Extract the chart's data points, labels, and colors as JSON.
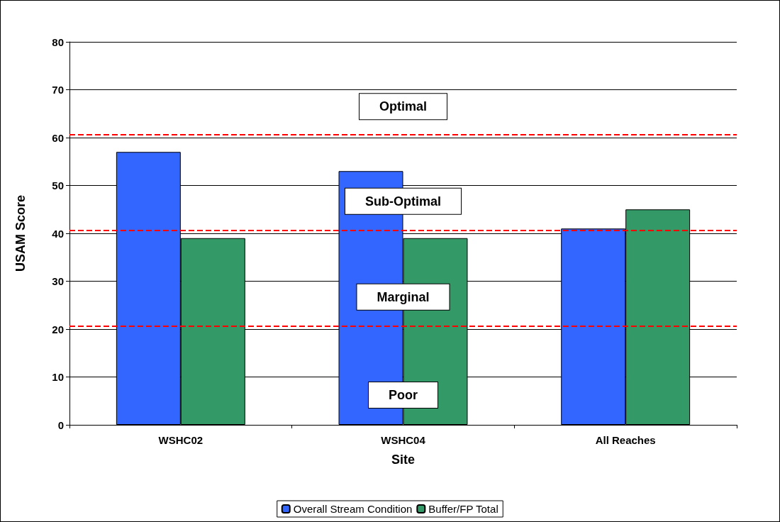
{
  "chart_data": {
    "type": "bar",
    "xlabel": "Site",
    "ylabel": "USAM Score",
    "categories": [
      "WSHC02",
      "WSHC04",
      "All Reaches"
    ],
    "series": [
      {
        "name": "Overall Stream Condition",
        "color": "#3366ff",
        "values": [
          57,
          53,
          41
        ]
      },
      {
        "name": "Buffer/FP Total",
        "color": "#339966",
        "values": [
          39,
          39,
          45
        ]
      }
    ],
    "ylim": [
      0,
      80
    ],
    "yticks": [
      0,
      10,
      20,
      30,
      40,
      50,
      60,
      70,
      80
    ],
    "grid": "y",
    "legend": "bottom",
    "ref_lines": [
      {
        "axis": "y",
        "value": 60.7,
        "color": "#ff0000",
        "line_style": "dashed"
      },
      {
        "axis": "y",
        "value": 40.7,
        "color": "#ff0000",
        "line_style": "dashed"
      },
      {
        "axis": "y",
        "value": 20.7,
        "color": "#ff0000",
        "line_style": "dashed"
      }
    ],
    "annotations": [
      "Optimal",
      "Sub-Optimal",
      "Marginal",
      "Poor"
    ]
  }
}
